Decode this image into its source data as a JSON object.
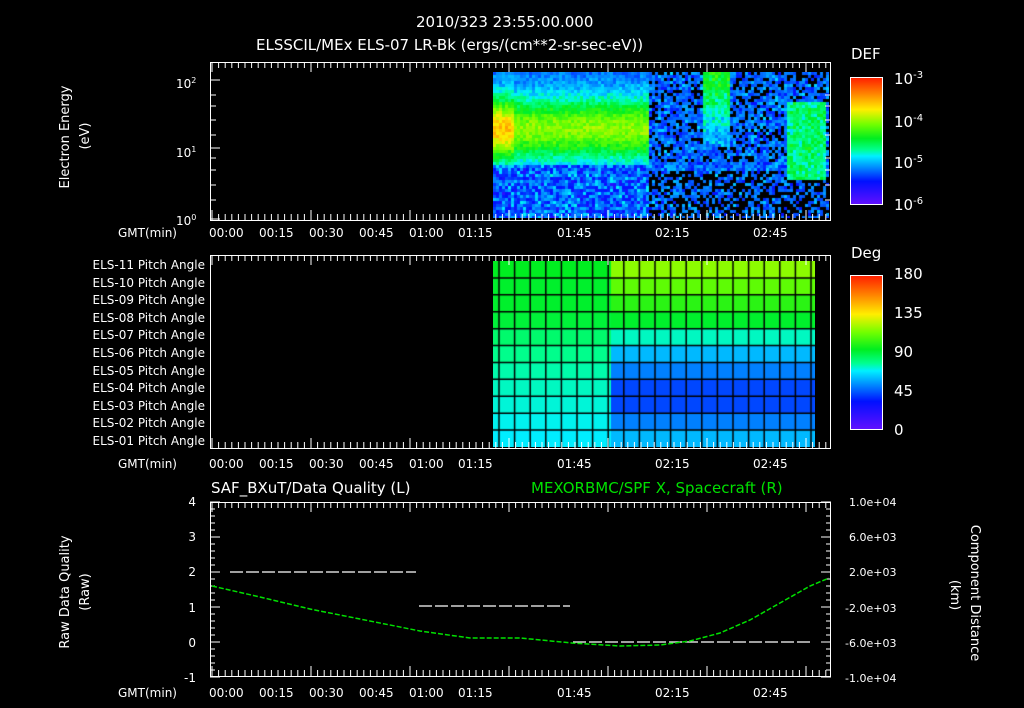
{
  "header": {
    "timestamp": "2010/323 23:55:00.000",
    "panel1_title": "ELSSCIL/MEx ELS-07 LR-Bk  (ergs/(cm**2-sr-sec-eV))"
  },
  "panel1": {
    "ylabel_line1": "Electron Energy",
    "ylabel_line2": "(eV)",
    "yticks": [
      {
        "base": "10",
        "exp": "2"
      },
      {
        "base": "10",
        "exp": "1"
      },
      {
        "base": "10",
        "exp": "0"
      }
    ],
    "xlabel": "GMT(min)",
    "xticks": [
      "00:00",
      "00:15",
      "00:30",
      "00:45",
      "01:00",
      "01:15",
      "01:45",
      "02:15",
      "02:45"
    ],
    "colorbar": {
      "title": "DEF",
      "labels": [
        {
          "base": "10",
          "exp": "-3"
        },
        {
          "base": "10",
          "exp": "-4"
        },
        {
          "base": "10",
          "exp": "-5"
        },
        {
          "base": "10",
          "exp": "-6"
        }
      ]
    }
  },
  "panel2": {
    "rows": [
      "ELS-11 Pitch Angle",
      "ELS-10 Pitch Angle",
      "ELS-09 Pitch Angle",
      "ELS-08 Pitch Angle",
      "ELS-07 Pitch Angle",
      "ELS-06 Pitch Angle",
      "ELS-05 Pitch Angle",
      "ELS-04 Pitch Angle",
      "ELS-03 Pitch Angle",
      "ELS-02 Pitch Angle",
      "ELS-01 Pitch Angle"
    ],
    "xlabel": "GMT(min)",
    "xticks": [
      "00:00",
      "00:15",
      "00:30",
      "00:45",
      "01:00",
      "01:15",
      "01:45",
      "02:15",
      "02:45"
    ],
    "colorbar": {
      "title": "Deg",
      "labels": [
        "180",
        "135",
        "90",
        "45",
        "0"
      ]
    }
  },
  "panel3": {
    "left_title": "SAF_BXuT/Data Quality (L)",
    "right_title": "MEXORBMC/SPF X, Spacecraft (R)",
    "ylabel_left_line1": "Raw Data Quality",
    "ylabel_left_line2": "(Raw)",
    "ylabel_right_line1": "Component Distance",
    "ylabel_right_line2": "(km)",
    "yticks_left": [
      "4",
      "3",
      "2",
      "1",
      "0",
      "-1"
    ],
    "yticks_right": [
      "1.0e+04",
      "6.0e+03",
      "2.0e+03",
      "-2.0e+03",
      "-6.0e+03",
      "-1.0e+04"
    ],
    "xlabel": "GMT(min)",
    "xticks": [
      "00:00",
      "00:15",
      "00:30",
      "00:45",
      "01:00",
      "01:15",
      "01:45",
      "02:15",
      "02:45"
    ]
  },
  "colors": {
    "background": "#000000",
    "axis": "#ffffff",
    "spacecraft_line": "#00e000",
    "quality_line": "#ffffff"
  },
  "chart_data": [
    {
      "type": "heatmap",
      "title": "ELSSCIL/MEx ELS-07 LR-Bk  (ergs/(cm**2-sr-sec-eV))",
      "xlabel": "GMT(min)",
      "ylabel": "Electron Energy (eV)",
      "x_ticks": [
        "00:00",
        "00:15",
        "00:30",
        "00:45",
        "01:00",
        "01:15",
        "01:45",
        "02:15",
        "02:45"
      ],
      "y_scale": "log",
      "ylim": [
        1,
        200
      ],
      "colorbar": {
        "title": "DEF",
        "scale": "log",
        "range": [
          1e-06,
          0.001
        ]
      },
      "notes": "Data present from ~01:20 onward; elevated flux (~1e-4) at 10-100 eV until ~01:40, sparse low flux afterwards, bursts near 02:22 and 02:50"
    },
    {
      "type": "heatmap",
      "title": "ELS Pitch Angle",
      "xlabel": "GMT(min)",
      "categories": [
        "ELS-11",
        "ELS-10",
        "ELS-09",
        "ELS-08",
        "ELS-07",
        "ELS-06",
        "ELS-05",
        "ELS-04",
        "ELS-03",
        "ELS-02",
        "ELS-01"
      ],
      "colorbar": {
        "title": "Deg",
        "range": [
          0,
          180
        ],
        "ticks": [
          0,
          45,
          90,
          135,
          180
        ]
      },
      "segments": [
        {
          "time": "01:20-01:43",
          "values_deg": [
            92,
            90,
            90,
            88,
            80,
            75,
            72,
            70,
            68,
            66,
            64
          ]
        },
        {
          "time": "01:43-02:58",
          "values_deg": [
            118,
            110,
            100,
            90,
            70,
            55,
            45,
            35,
            35,
            45,
            55
          ]
        }
      ]
    },
    {
      "type": "line",
      "title": "SAF_BXuT/Data Quality (L) ; MEXORBMC/SPF X, Spacecraft (R)",
      "xlabel": "GMT(min)",
      "x": [
        "00:00",
        "00:15",
        "00:30",
        "00:45",
        "01:00",
        "01:15",
        "01:30",
        "01:45",
        "02:00",
        "02:15",
        "02:30",
        "02:45",
        "02:58"
      ],
      "series": [
        {
          "name": "Data Quality (L)",
          "axis": "left",
          "ylim": [
            -1,
            4
          ],
          "values": [
            null,
            2,
            2,
            2,
            2,
            1,
            1,
            1,
            0,
            0,
            0,
            0,
            0
          ]
        },
        {
          "name": "SPF X, Spacecraft (km) (R)",
          "axis": "right",
          "ylim": [
            -10000,
            10000
          ],
          "values": [
            -400,
            -1500,
            -2600,
            -3500,
            -4300,
            -5000,
            -5600,
            -6000,
            -6200,
            -6000,
            -5000,
            -2800,
            600
          ]
        }
      ]
    }
  ]
}
